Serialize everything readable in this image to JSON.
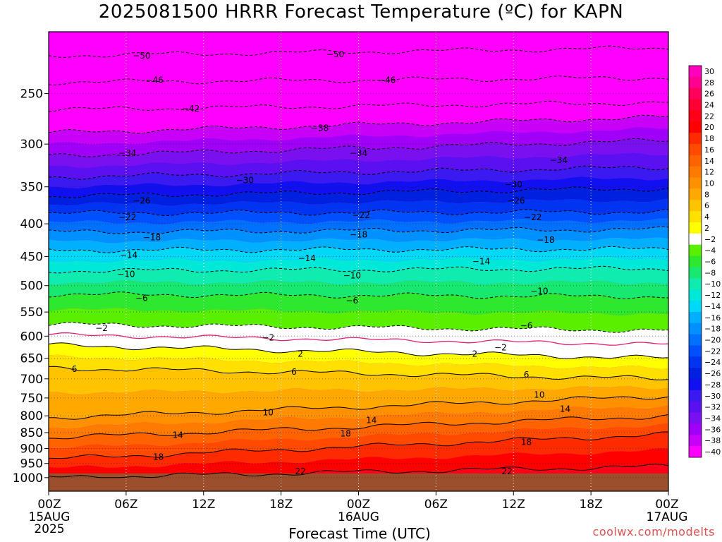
{
  "chart_data": {
    "type": "heatmap",
    "title": "2025081500 HRRR Forecast Temperature (ºC) for KAPN",
    "xlabel": "Forecast Time (UTC)",
    "ylabel": "",
    "credit": "coolwx.com/modelts",
    "y_axis": {
      "scale": "log",
      "inverted": true,
      "unit": "hPa",
      "ticks": [
        250,
        300,
        350,
        400,
        450,
        500,
        550,
        600,
        650,
        700,
        750,
        800,
        850,
        900,
        950,
        1000
      ],
      "range": [
        200,
        1050
      ]
    },
    "x_axis": {
      "range_hours": [
        0,
        48
      ],
      "ticks": [
        {
          "hour": 0,
          "l1": "00Z",
          "l2": "15AUG",
          "l3": "2025"
        },
        {
          "hour": 6,
          "l1": "06Z",
          "l2": "",
          "l3": ""
        },
        {
          "hour": 12,
          "l1": "12Z",
          "l2": "",
          "l3": ""
        },
        {
          "hour": 18,
          "l1": "18Z",
          "l2": "",
          "l3": ""
        },
        {
          "hour": 24,
          "l1": "00Z",
          "l2": "16AUG",
          "l3": ""
        },
        {
          "hour": 30,
          "l1": "06Z",
          "l2": "",
          "l3": ""
        },
        {
          "hour": 36,
          "l1": "12Z",
          "l2": "",
          "l3": ""
        },
        {
          "hour": 42,
          "l1": "18Z",
          "l2": "",
          "l3": ""
        },
        {
          "hour": 48,
          "l1": "00Z",
          "l2": "17AUG",
          "l3": ""
        }
      ]
    },
    "colorbar": {
      "levels": [
        30,
        28,
        26,
        24,
        22,
        20,
        18,
        16,
        14,
        12,
        10,
        8,
        6,
        4,
        2,
        -2,
        -4,
        -6,
        -8,
        -10,
        -12,
        -14,
        -16,
        -18,
        -20,
        -22,
        -24,
        -26,
        -28,
        -30,
        -32,
        -34,
        -36,
        -38,
        -40
      ],
      "colors": [
        "#ff00bf",
        "#ff0090",
        "#ff005a",
        "#ff0033",
        "#ff0018",
        "#ff0000",
        "#ff2b00",
        "#ff4a00",
        "#ff6300",
        "#ff7a00",
        "#ff9000",
        "#ffa800",
        "#ffc300",
        "#ffe000",
        "#ffff00",
        "#ffffff",
        "#5aef00",
        "#2ee830",
        "#18e870",
        "#10ecb0",
        "#00e8d8",
        "#00d8f8",
        "#00b0ff",
        "#0090ff",
        "#0070ff",
        "#0050ff",
        "#0034f0",
        "#0020e0",
        "#1010f0",
        "#3a1af0",
        "#5a10f0",
        "#7a10f0",
        "#a000f8",
        "#c800f8",
        "#ff00ff"
      ]
    },
    "contours": [
      {
        "t": -50,
        "p_start": 218,
        "p_end": 212,
        "dashed": true
      },
      {
        "t": -46,
        "p_start": 240,
        "p_end": 236,
        "dashed": true
      },
      {
        "t": -42,
        "p_start": 265,
        "p_end": 258,
        "dashed": true
      },
      {
        "t": -38,
        "p_start": 288,
        "p_end": 272,
        "dashed": true
      },
      {
        "t": -34,
        "p_start": 313,
        "p_end": 296,
        "dashed": true
      },
      {
        "t": -30,
        "p_start": 338,
        "p_end": 326,
        "dashed": true
      },
      {
        "t": -26,
        "p_start": 362,
        "p_end": 352,
        "dashed": true
      },
      {
        "t": -22,
        "p_start": 385,
        "p_end": 383,
        "dashed": true
      },
      {
        "t": -18,
        "p_start": 412,
        "p_end": 408,
        "dashed": true
      },
      {
        "t": -14,
        "p_start": 440,
        "p_end": 438,
        "dashed": true
      },
      {
        "t": -10,
        "p_start": 474,
        "p_end": 470,
        "dashed": true
      },
      {
        "t": -6,
        "p_start": 516,
        "p_end": 520,
        "dashed": true
      },
      {
        "t": -2,
        "p_start": 575,
        "p_end": 588,
        "dashed": true
      },
      {
        "t": 2,
        "p_start": 620,
        "p_end": 650,
        "dashed": false
      },
      {
        "t": 6,
        "p_start": 673,
        "p_end": 700,
        "dashed": false
      },
      {
        "t": 10,
        "p_start": 805,
        "p_end": 745,
        "dashed": false
      },
      {
        "t": 14,
        "p_start": 866,
        "p_end": 800,
        "dashed": false
      },
      {
        "t": 18,
        "p_start": 935,
        "p_end": 855,
        "dashed": false
      },
      {
        "t": 22,
        "p_start": 1000,
        "p_end": 960,
        "dashed": false
      }
    ],
    "contour_labels": [
      {
        "text": "-50",
        "hour": 7.2,
        "p": 218
      },
      {
        "text": "-50",
        "hour": 22.2,
        "p": 217
      },
      {
        "text": "-46",
        "hour": 8.2,
        "p": 238
      },
      {
        "text": "-46",
        "hour": 26.2,
        "p": 238
      },
      {
        "text": "-42",
        "hour": 11.0,
        "p": 264
      },
      {
        "text": "-38",
        "hour": 21.0,
        "p": 283
      },
      {
        "text": "-34",
        "hour": 6.1,
        "p": 310
      },
      {
        "text": "-34",
        "hour": 24.0,
        "p": 310
      },
      {
        "text": "-34",
        "hour": 39.5,
        "p": 318
      },
      {
        "text": "-30",
        "hour": 15.2,
        "p": 342
      },
      {
        "text": "-30",
        "hour": 36.0,
        "p": 347
      },
      {
        "text": "-26",
        "hour": 7.2,
        "p": 368
      },
      {
        "text": "-26",
        "hour": 36.2,
        "p": 368
      },
      {
        "text": "-22",
        "hour": 6.1,
        "p": 391
      },
      {
        "text": "-22",
        "hour": 24.2,
        "p": 388
      },
      {
        "text": "-22",
        "hour": 37.5,
        "p": 391
      },
      {
        "text": "-18",
        "hour": 8.0,
        "p": 420
      },
      {
        "text": "-18",
        "hour": 24.0,
        "p": 416
      },
      {
        "text": "-18",
        "hour": 38.5,
        "p": 424
      },
      {
        "text": "-14",
        "hour": 6.2,
        "p": 448
      },
      {
        "text": "-14",
        "hour": 20.0,
        "p": 453
      },
      {
        "text": "-14",
        "hour": 33.5,
        "p": 458
      },
      {
        "text": "-10",
        "hour": 6.0,
        "p": 480
      },
      {
        "text": "-10",
        "hour": 23.5,
        "p": 482
      },
      {
        "text": "-10",
        "hour": 38.0,
        "p": 510
      },
      {
        "text": "-6",
        "hour": 7.2,
        "p": 523
      },
      {
        "text": "-6",
        "hour": 23.5,
        "p": 528
      },
      {
        "text": "-6",
        "hour": 37.0,
        "p": 578
      },
      {
        "text": "-2",
        "hour": 4.1,
        "p": 583
      },
      {
        "text": "-2",
        "hour": 17.0,
        "p": 603
      },
      {
        "text": "-2",
        "hour": 35.0,
        "p": 625
      },
      {
        "text": "2",
        "hour": 19.5,
        "p": 640
      },
      {
        "text": "2",
        "hour": 33.0,
        "p": 640
      },
      {
        "text": "6",
        "hour": 2.0,
        "p": 676
      },
      {
        "text": "6",
        "hour": 19.0,
        "p": 683
      },
      {
        "text": "6",
        "hour": 37.0,
        "p": 690
      },
      {
        "text": "10",
        "hour": 17.0,
        "p": 790
      },
      {
        "text": "10",
        "hour": 38.0,
        "p": 742
      },
      {
        "text": "14",
        "hour": 10.0,
        "p": 858
      },
      {
        "text": "14",
        "hour": 25.0,
        "p": 813
      },
      {
        "text": "14",
        "hour": 40.0,
        "p": 780
      },
      {
        "text": "18",
        "hour": 8.5,
        "p": 928
      },
      {
        "text": "18",
        "hour": 23.0,
        "p": 853
      },
      {
        "text": "18",
        "hour": 37.0,
        "p": 880
      },
      {
        "text": "22",
        "hour": 19.5,
        "p": 978
      },
      {
        "text": "22",
        "hour": 35.5,
        "p": 978
      }
    ]
  }
}
